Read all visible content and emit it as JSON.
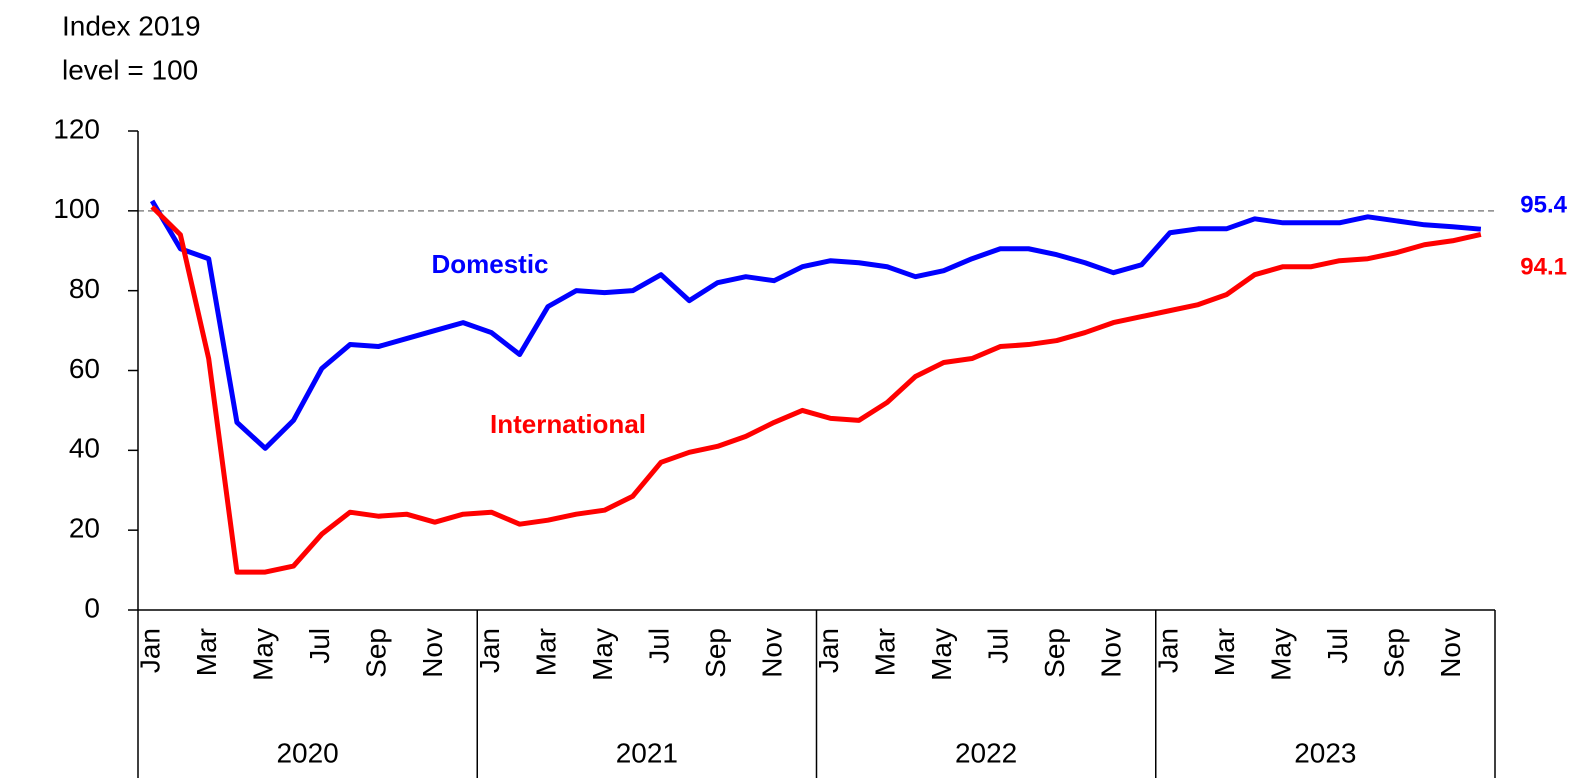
{
  "chart_data": {
    "type": "line",
    "ylabel": [
      "Index 2019",
      "level = 100"
    ],
    "categories": [
      "Jan",
      null,
      "Mar",
      null,
      "May",
      null,
      "Jul",
      null,
      "Sep",
      null,
      "Nov",
      null,
      "Jan",
      null,
      "Mar",
      null,
      "May",
      null,
      "Jul",
      null,
      "Sep",
      null,
      "Nov",
      null,
      "Jan",
      null,
      "Mar",
      null,
      "May",
      null,
      "Jul",
      null,
      "Sep",
      null,
      "Nov",
      null,
      "Jan",
      null,
      "Mar",
      null,
      "May",
      null,
      "Jul",
      null,
      "Sep",
      null,
      "Nov",
      null
    ],
    "years": [
      "2020",
      "2021",
      "2022",
      "2023"
    ],
    "series": [
      {
        "name": "Domestic",
        "color": "#0000ff",
        "values": [
          102.5,
          90.5,
          88,
          47,
          40.5,
          47.5,
          60.5,
          66.5,
          66,
          68,
          70,
          72,
          69.5,
          64,
          76,
          80,
          79.5,
          80,
          84,
          77.5,
          82,
          83.5,
          82.5,
          86,
          87.5,
          87,
          86,
          83.5,
          85,
          88,
          90.5,
          90.5,
          89,
          87,
          84.5,
          86.5,
          94.5,
          95.5,
          95.5,
          98,
          97,
          97,
          97,
          98.5,
          97.5,
          96.5,
          96,
          95.4
        ]
      },
      {
        "name": "International",
        "color": "#ff0000",
        "values": [
          101,
          94,
          63,
          9.5,
          9.5,
          11,
          19,
          24.5,
          23.5,
          24,
          22,
          24,
          24.5,
          21.5,
          22.5,
          24,
          25,
          28.5,
          37,
          39.5,
          41,
          43.5,
          47,
          50,
          48,
          47.5,
          52,
          58.5,
          62,
          63,
          66,
          66.5,
          67.5,
          69.5,
          72,
          73.5,
          75,
          76.5,
          79,
          84,
          86,
          86,
          87.5,
          88,
          89.5,
          91.5,
          92.5,
          94.1
        ]
      }
    ],
    "ylim": [
      0,
      120
    ],
    "yticks": [
      0,
      20,
      40,
      60,
      80,
      100,
      120
    ],
    "reference_line": 100
  }
}
